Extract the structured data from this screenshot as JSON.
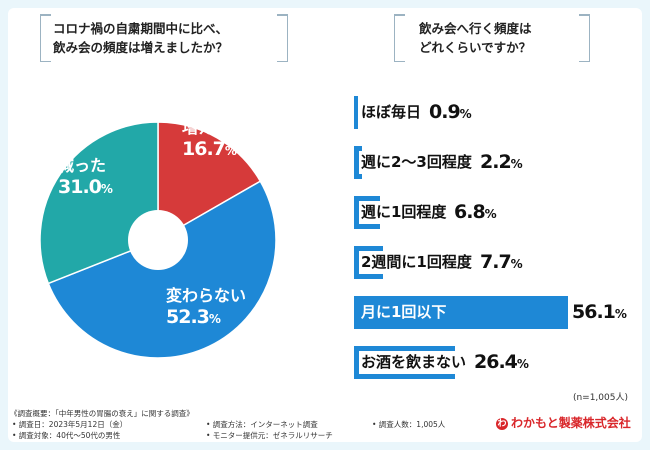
{
  "questions": {
    "left": [
      "コロナ禍の自粛期間中に比べ、",
      "飲み会の頻度は増えましたか？"
    ],
    "right": [
      "飲み会へ行く頻度は",
      "どれくらいですか？"
    ]
  },
  "chart_data": [
    {
      "type": "pie",
      "title": "コロナ禍の自粛期間中に比べ、飲み会の頻度は増えましたか？",
      "unit": "%",
      "slices": [
        {
          "label": "増えた",
          "value": 16.7,
          "color": "#d63a3a"
        },
        {
          "label": "変わらない",
          "value": 52.3,
          "color": "#1e88d6"
        },
        {
          "label": "減った",
          "value": 31.0,
          "color": "#22a8a8"
        }
      ]
    },
    {
      "type": "bar",
      "orientation": "horizontal",
      "title": "飲み会へ行く頻度はどれくらいですか？",
      "unit": "%",
      "xlim": [
        0,
        56.1
      ],
      "categories": [
        "ほぼ毎日",
        "週に2〜3回程度",
        "週に1回程度",
        "2週間に1回程度",
        "月に1回以下",
        "お酒を飲まない"
      ],
      "values": [
        0.9,
        2.2,
        6.8,
        7.7,
        56.1,
        26.4
      ],
      "color": "#1e88d6"
    }
  ],
  "sample_note": "(n=1,005人)",
  "footer": {
    "summary": "《調査概要：「中年男性の胃腸の衰え」に関する調査》",
    "date": "• 調査日：2023年5月12日（金）",
    "method": "• 調査方法：インターネット調査",
    "count": "• 調査人数：1,005人",
    "target": "• 調査対象：40代〜50代の男性",
    "provider": "• モニター提供元：ゼネラルリサーチ"
  },
  "logo": {
    "text": "わかもと製薬株式会社",
    "mark": "わ"
  }
}
